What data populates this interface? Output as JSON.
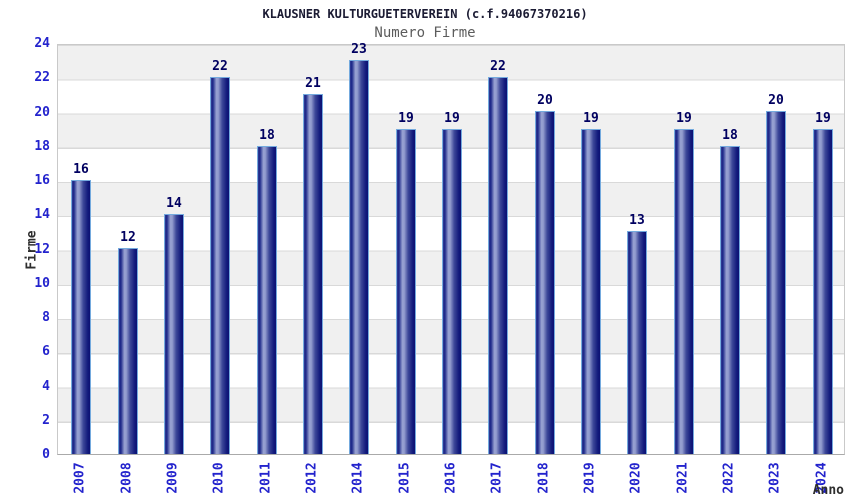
{
  "chart_data": {
    "type": "bar",
    "title": "KLAUSNER KULTURGUETERVEREIN (c.f.94067370216)",
    "subtitle": "Numero Firme",
    "xlabel": "Anno",
    "ylabel": "Firme",
    "categories": [
      "2007",
      "2008",
      "2009",
      "2010",
      "2011",
      "2012",
      "2014",
      "2015",
      "2016",
      "2017",
      "2018",
      "2019",
      "2020",
      "2021",
      "2022",
      "2023",
      "2024"
    ],
    "values": [
      16,
      12,
      14,
      22,
      18,
      21,
      23,
      19,
      19,
      22,
      20,
      19,
      13,
      19,
      18,
      20,
      19
    ],
    "ylim": [
      0,
      24
    ],
    "yticks": [
      0,
      2,
      4,
      6,
      8,
      10,
      12,
      14,
      16,
      18,
      20,
      22,
      24
    ],
    "grid": "on",
    "legend": "none",
    "colors": {
      "bar_dark": "#0c1173",
      "bar_highlight": "#98a2d2",
      "bar_outline": "#74aade",
      "tick_label": "#2323cd",
      "value_label": "#000060",
      "band_gray": "#f0f0f0",
      "band_white": "#ffffff",
      "grid_line": "#d9d9d9",
      "title_color": "#1b1b33",
      "subtitle_color": "#5c5c5c",
      "axis_title_color": "#2e2e2e"
    }
  }
}
